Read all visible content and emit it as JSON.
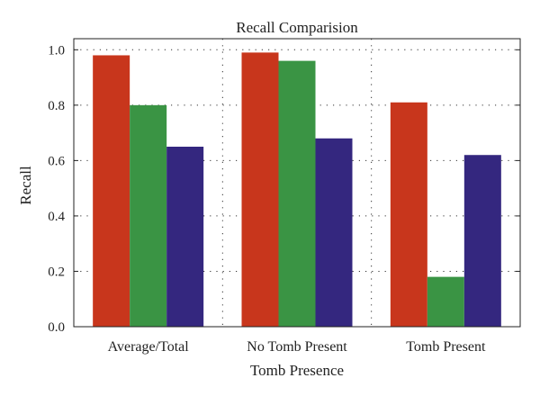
{
  "chart_data": {
    "type": "bar",
    "title": "Recall Comparision",
    "xlabel": "Tomb Presence",
    "ylabel": "Recall",
    "categories": [
      "Average/Total",
      "No Tomb Present",
      "Tomb Present"
    ],
    "ylim": [
      0.0,
      1.04
    ],
    "yticks": [
      "0.0",
      "0.2",
      "0.4",
      "0.6",
      "0.8",
      "1.0"
    ],
    "grid": "dotted",
    "legend": "none",
    "series": [
      {
        "color": "#c8361c",
        "values": [
          0.98,
          0.99,
          0.81
        ]
      },
      {
        "color": "#3a9444",
        "values": [
          0.8,
          0.96,
          0.18
        ]
      },
      {
        "color": "#34277f",
        "values": [
          0.65,
          0.68,
          0.62
        ]
      }
    ]
  }
}
